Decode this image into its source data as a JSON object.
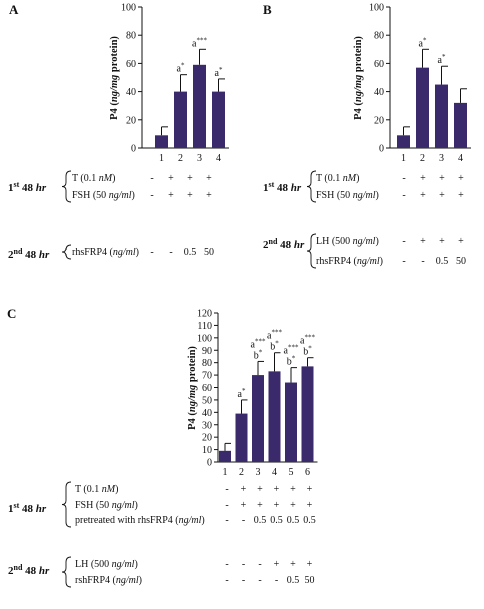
{
  "chart_data": [
    {
      "type": "bar",
      "panel": "A",
      "ylabel": "P4 (ng/mg protein)",
      "ylim": [
        0,
        100
      ],
      "yticks": [
        "0",
        "20",
        "40",
        "60",
        "80",
        "100"
      ],
      "categories": [
        "1",
        "2",
        "3",
        "4"
      ],
      "values": [
        9,
        40,
        59,
        40
      ],
      "errors": [
        6,
        12,
        11,
        9
      ],
      "annotations": [
        {
          "bar": 1,
          "text": "a*"
        },
        {
          "bar": 2,
          "text": "a***"
        },
        {
          "bar": 3,
          "text": "a*"
        }
      ],
      "treatment_groups": [
        {
          "label": "1st 48 hr",
          "rows": [
            {
              "label": "T (0.1 nM)",
              "marks": [
                "-",
                "+",
                "+",
                "+"
              ]
            },
            {
              "label": "FSH (50 ng/ml)",
              "marks": [
                "-",
                "+",
                "+",
                "+"
              ]
            }
          ]
        },
        {
          "label": "2nd 48 hr",
          "rows": [
            {
              "label": "rhsFRP4 (ng/ml)",
              "marks": [
                "-",
                "-",
                "0.5",
                "50"
              ]
            }
          ]
        }
      ]
    },
    {
      "type": "bar",
      "panel": "B",
      "ylabel": "P4 (ng/mg protein)",
      "ylim": [
        0,
        100
      ],
      "yticks": [
        "0",
        "20",
        "40",
        "60",
        "80",
        "100"
      ],
      "categories": [
        "1",
        "2",
        "3",
        "4"
      ],
      "values": [
        9,
        57,
        45,
        32
      ],
      "errors": [
        6,
        13,
        13,
        10
      ],
      "annotations": [
        {
          "bar": 1,
          "text": "a*"
        },
        {
          "bar": 2,
          "text": "a*"
        }
      ],
      "treatment_groups": [
        {
          "label": "1st 48 hr",
          "rows": [
            {
              "label": "T (0.1 nM)",
              "marks": [
                "-",
                "+",
                "+",
                "+"
              ]
            },
            {
              "label": "FSH (50 ng/ml)",
              "marks": [
                "-",
                "+",
                "+",
                "+"
              ]
            }
          ]
        },
        {
          "label": "2nd 48 hr",
          "rows": [
            {
              "label": "LH (500 ng/ml)",
              "marks": [
                "-",
                "+",
                "+",
                "+"
              ]
            },
            {
              "label": "rhsFRP4 (ng/ml)",
              "marks": [
                "-",
                "-",
                "0.5",
                "50"
              ]
            }
          ]
        }
      ]
    },
    {
      "type": "bar",
      "panel": "C",
      "ylabel": "P4 (ng/mg protein)",
      "ylim": [
        0,
        120
      ],
      "yticks": [
        "0",
        "10",
        "20",
        "30",
        "40",
        "50",
        "60",
        "70",
        "80",
        "90",
        "100",
        "110",
        "120"
      ],
      "categories": [
        "1",
        "2",
        "3",
        "4",
        "5",
        "6"
      ],
      "values": [
        9,
        39,
        70,
        73,
        64,
        77
      ],
      "errors": [
        6,
        11,
        11,
        15,
        12,
        7
      ],
      "annotations": [
        {
          "bar": 1,
          "text": "a*"
        },
        {
          "bar": 2,
          "text": "a***"
        },
        {
          "bar": 2,
          "text": "b*"
        },
        {
          "bar": 3,
          "text": "a***"
        },
        {
          "bar": 3,
          "text": "b*"
        },
        {
          "bar": 4,
          "text": "a***"
        },
        {
          "bar": 4,
          "text": "b*"
        },
        {
          "bar": 5,
          "text": "a***"
        },
        {
          "bar": 5,
          "text": "b*"
        }
      ],
      "treatment_groups": [
        {
          "label": "1st 48 hr",
          "rows": [
            {
              "label": "T (0.1 nM)",
              "marks": [
                "-",
                "+",
                "+",
                "+",
                "+",
                "+"
              ]
            },
            {
              "label": "FSH (50 ng/ml)",
              "marks": [
                "-",
                "+",
                "+",
                "+",
                "+",
                "+"
              ]
            },
            {
              "label": "pretreated with rhsFRP4 (ng/ml)",
              "marks": [
                "-",
                "-",
                "0.5",
                "0.5",
                "0.5",
                "0.5"
              ]
            }
          ]
        },
        {
          "label": "2nd 48 hr",
          "rows": [
            {
              "label": "LH (500 ng/ml)",
              "marks": [
                "-",
                "-",
                "-",
                "+",
                "+",
                "+"
              ]
            },
            {
              "label": "rshFRP4 (ng/ml)",
              "marks": [
                "-",
                "-",
                "-",
                "-",
                "0.5",
                "50"
              ]
            }
          ]
        }
      ]
    }
  ],
  "colors": {
    "bar": "#3b2a6b",
    "ink": "#111111"
  }
}
